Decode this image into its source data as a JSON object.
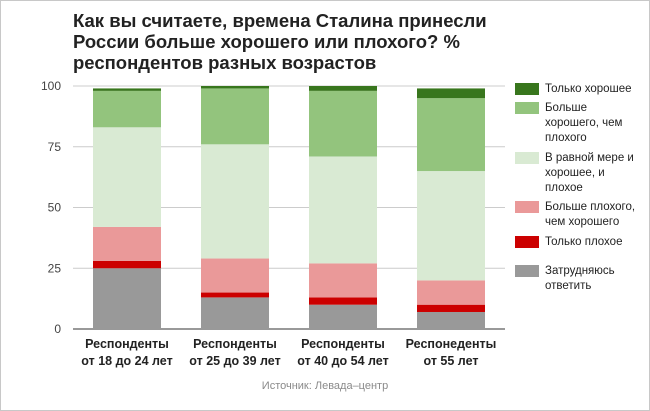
{
  "title": "Как вы считаете, времена Сталина принесли России больше хорошего или плохого? % респондентов разных возрастов",
  "source": "Источник: Левада–центр",
  "chart_data": {
    "type": "bar",
    "stacked": true,
    "categories": [
      [
        "Респонденты",
        "от 18 до 24 лет"
      ],
      [
        "Респонденты",
        "от 25 до 39 лет"
      ],
      [
        "Респонденты",
        "от 40 до 54 лет"
      ],
      [
        "Респонеденты",
        "от 55 лет"
      ]
    ],
    "ylim": [
      0,
      100
    ],
    "yticks": [
      0,
      25,
      50,
      75,
      100
    ],
    "grid": true,
    "legend_position": "right",
    "series": [
      {
        "name": "Затрудняюсь ответить",
        "color": "#999999",
        "values": [
          25,
          13,
          10,
          7
        ]
      },
      {
        "name": "Только плохое",
        "color": "#cc0000",
        "values": [
          3,
          2,
          3,
          3
        ]
      },
      {
        "name": "Больше плохого, чем хорошего",
        "color": "#ea9999",
        "values": [
          14,
          14,
          14,
          10
        ]
      },
      {
        "name": "В равной мере и хорошее, и плохое",
        "color": "#d9ead3",
        "values": [
          41,
          47,
          44,
          45
        ]
      },
      {
        "name": "Больше хорошего, чем плохого",
        "color": "#93c47d",
        "values": [
          15,
          23,
          27,
          30
        ]
      },
      {
        "name": "Только хорошее",
        "color": "#38761d",
        "values": [
          1,
          1,
          2,
          4
        ]
      }
    ],
    "legend": [
      {
        "name": "Только хорошее",
        "lines": [
          "Только хорошее"
        ],
        "color": "#38761d"
      },
      {
        "name": "Больше хорошего, чем плохого",
        "lines": [
          "Больше",
          "хорошего, чем",
          "плохого"
        ],
        "color": "#93c47d"
      },
      {
        "name": "В равной мере и хорошее, и плохое",
        "lines": [
          "В равной мере и",
          "хорошее, и",
          "плохое"
        ],
        "color": "#d9ead3"
      },
      {
        "name": "Больше плохого, чем хорошего",
        "lines": [
          "Больше плохого,",
          "чем хорошего"
        ],
        "color": "#ea9999"
      },
      {
        "name": "Только плохое",
        "lines": [
          "Только плохое"
        ],
        "color": "#cc0000"
      },
      {
        "name": "Затрудняюсь ответить",
        "lines": [
          "Затрудняюсь",
          "ответить"
        ],
        "color": "#999999"
      }
    ]
  }
}
